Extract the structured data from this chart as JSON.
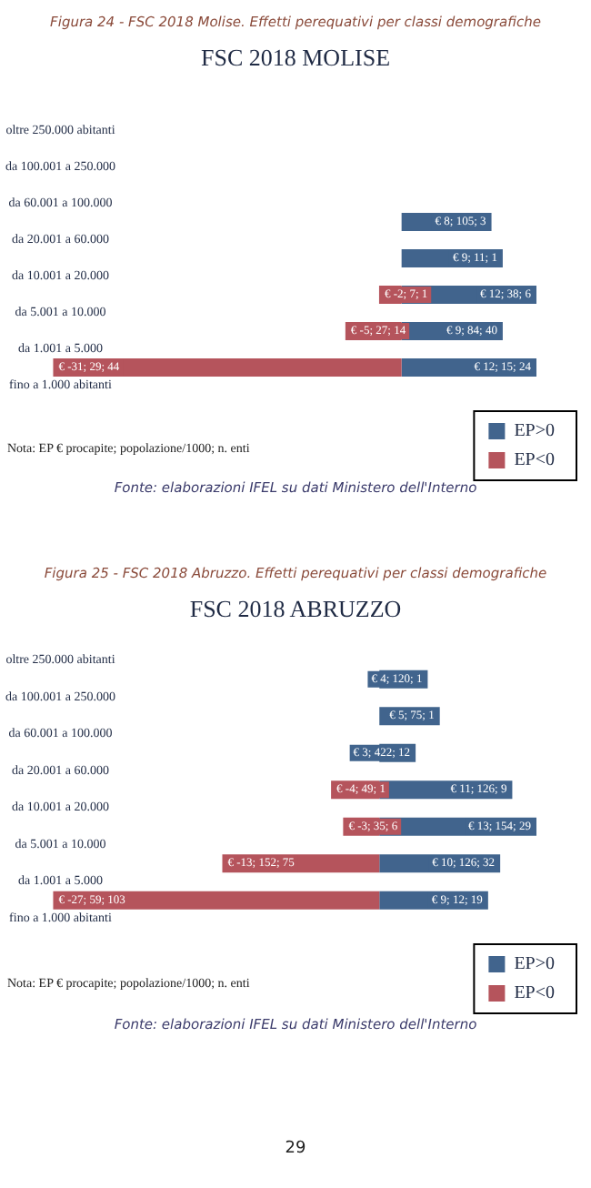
{
  "chart_data": [
    {
      "type": "bar",
      "orientation": "horizontal",
      "stacked": true,
      "title": "FSC 2018 MOLISE",
      "legend": "bottom right",
      "categories": [
        "oltre 250.000 abitanti",
        "da 100.001 a 250.000",
        "da 60.001 a 100.000",
        "da 20.001 a 60.000",
        "da 10.001 a 20.000",
        "da 5.001 a 10.000",
        "da 1.001 a 5.000",
        "fino a 1.000 abitanti"
      ],
      "series": [
        {
          "name": "EP>0",
          "color": "#41648d",
          "values": [
            null,
            null,
            null,
            8,
            9,
            12,
            9,
            12
          ],
          "value_labels": [
            null,
            null,
            null,
            "€ 8; 105; 3",
            "€ 9; 11; 1",
            "€ 12; 38; 6",
            "€ 9; 84; 40",
            "€ 12; 15; 24"
          ]
        },
        {
          "name": "EP<0",
          "color": "#b5545c",
          "values": [
            null,
            null,
            null,
            null,
            null,
            -2,
            -5,
            -31
          ],
          "value_labels": [
            null,
            null,
            null,
            null,
            null,
            "€ -2; 7; 1",
            "€ -5; 27; 14",
            "€ -31; 29; 44"
          ]
        }
      ],
      "annotations": [
        "Figura 24 - FSC 2018 Molise. Effetti perequativi per classi demografiche",
        "Nota: EP € procapite; popolazione/1000; n. enti",
        "Fonte: elaborazioni IFEL su dati Ministero dell'Interno"
      ]
    },
    {
      "type": "bar",
      "orientation": "horizontal",
      "stacked": true,
      "title": "FSC 2018 ABRUZZO",
      "legend": "bottom right",
      "categories": [
        "oltre 250.000 abitanti",
        "da 100.001 a 250.000",
        "da 60.001 a 100.000",
        "da 20.001 a 60.000",
        "da 10.001 a 20.000",
        "da 5.001 a 10.000",
        "da 1.001 a 5.000",
        "fino a 1.000 abitanti"
      ],
      "series": [
        {
          "name": "EP>0",
          "color": "#41648d",
          "values": [
            null,
            4,
            5,
            3,
            11,
            13,
            10,
            9
          ],
          "value_labels": [
            null,
            "€ 4; 120; 1",
            "€ 5; 75; 1",
            "€ 3; 422; 12",
            "€ 11; 126; 9",
            "€ 13; 154; 29",
            "€ 10; 126; 32",
            "€ 9; 12; 19"
          ]
        },
        {
          "name": "EP<0",
          "color": "#b5545c",
          "values": [
            null,
            null,
            null,
            null,
            -4,
            -3,
            -13,
            -27
          ],
          "value_labels": [
            null,
            null,
            null,
            null,
            "€ -4; 49; 1",
            "€ -3; 35; 6",
            "€ -13; 152; 75",
            "€ -27; 59; 103"
          ]
        }
      ],
      "annotations": [
        "Figura 25 - FSC 2018 Abruzzo. Effetti perequativi per classi demografiche",
        "Nota: EP € procapite; popolazione/1000; n. enti",
        "Fonte: elaborazioni IFEL su dati Ministero dell'Interno",
        "29"
      ]
    }
  ]
}
